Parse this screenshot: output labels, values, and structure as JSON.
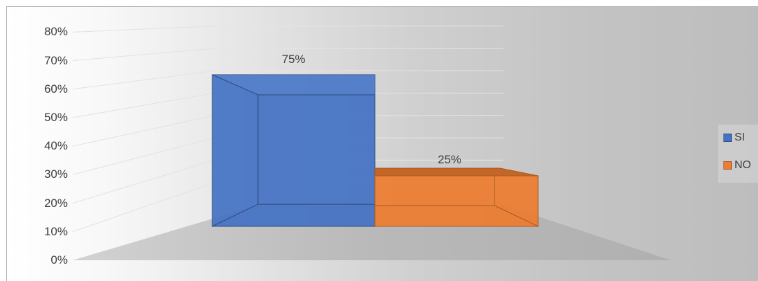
{
  "chart_data": {
    "type": "bar",
    "variant": "3d-column",
    "categories": [
      "SI",
      "NO"
    ],
    "values": [
      75,
      25
    ],
    "data_labels": [
      "75%",
      "25%"
    ],
    "title": "",
    "xlabel": "",
    "ylabel": "",
    "ylim": [
      0,
      80
    ],
    "ytick_step": 10,
    "yticks": [
      "0%",
      "10%",
      "20%",
      "30%",
      "40%",
      "50%",
      "60%",
      "70%",
      "80%"
    ],
    "grid": true,
    "legend_position": "right",
    "legend": [
      {
        "label": "SI",
        "color": "#4472c4"
      },
      {
        "label": "NO",
        "color": "#ed7d31"
      }
    ]
  }
}
